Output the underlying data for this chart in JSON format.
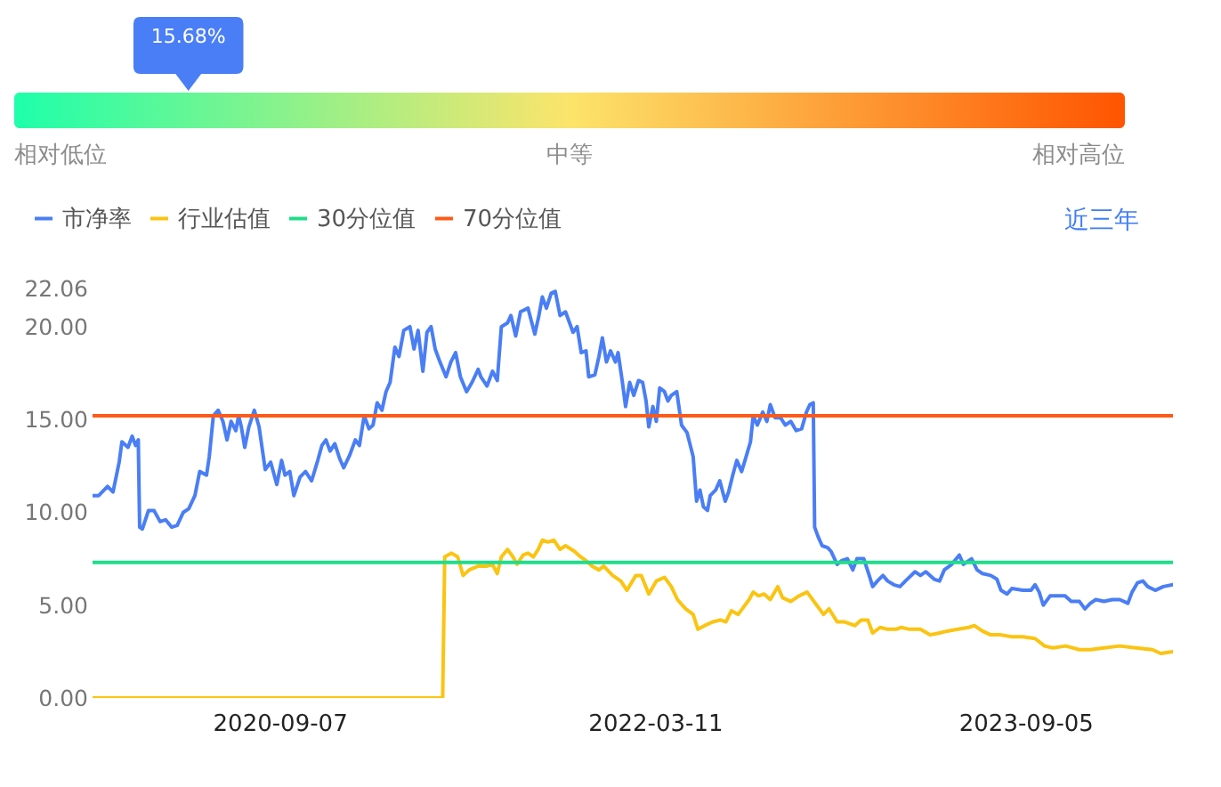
{
  "chart_data": [
    {
      "type": "other",
      "values": [
        15.68
      ],
      "value_labels": [
        "15.68%"
      ],
      "color": "#4a7ef7",
      "annotations": [
        "相对低位",
        "中等",
        "相对高位"
      ]
    },
    {
      "type": "line",
      "legend": "top left",
      "annotations": [
        "近三年"
      ],
      "xlim": [
        "2019-12-08",
        "2024-04-08"
      ],
      "xticks": [
        "2020-09-07",
        "2022-03-11",
        "2023-09-05"
      ],
      "ylim": [
        0,
        22.06
      ],
      "yticks": [
        {
          "value": 0,
          "label": "0.00"
        },
        {
          "value": 5,
          "label": "5.00"
        },
        {
          "value": 10,
          "label": "10.00"
        },
        {
          "value": 15,
          "label": "15.00"
        },
        {
          "value": 20,
          "label": "20.00"
        },
        {
          "value": 22.06,
          "label": "22.06"
        }
      ],
      "series": [
        {
          "name": "市净率",
          "color": "#4a7ef5",
          "x": [
            "2019-12-08",
            "2019-12-17",
            "2019-12-30",
            "2020-01-07",
            "2020-01-16",
            "2020-01-20",
            "2020-01-29",
            "2020-02-04",
            "2020-02-09",
            "2020-02-13",
            "2020-02-15",
            "2020-02-19",
            "2020-02-28",
            "2020-03-07",
            "2020-03-16",
            "2020-03-24",
            "2020-04-02",
            "2020-04-10",
            "2020-04-19",
            "2020-04-27",
            "2020-05-06",
            "2020-05-13",
            "2020-05-23",
            "2020-05-27",
            "2020-06-02",
            "2020-06-09",
            "2020-06-16",
            "2020-06-22",
            "2020-06-28",
            "2020-07-05",
            "2020-07-09",
            "2020-07-13",
            "2020-07-18",
            "2020-07-24",
            "2020-08-01",
            "2020-08-08",
            "2020-08-17",
            "2020-08-25",
            "2020-09-03",
            "2020-09-10",
            "2020-09-15",
            "2020-09-22",
            "2020-09-28",
            "2020-10-07",
            "2020-10-15",
            "2020-10-24",
            "2020-11-02",
            "2020-11-08",
            "2020-11-14",
            "2020-11-20",
            "2020-11-27",
            "2020-12-04",
            "2020-12-10",
            "2020-12-19",
            "2020-12-27",
            "2021-01-02",
            "2021-01-09",
            "2021-01-16",
            "2021-01-22",
            "2021-01-28",
            "2021-02-04",
            "2021-02-10",
            "2021-02-16",
            "2021-02-23",
            "2021-03-01",
            "2021-03-08",
            "2021-03-17",
            "2021-03-23",
            "2021-03-29",
            "2021-04-05",
            "2021-04-11",
            "2021-04-17",
            "2021-04-23",
            "2021-04-30",
            "2021-05-09",
            "2021-05-16",
            "2021-05-23",
            "2021-05-30",
            "2021-06-08",
            "2021-06-16",
            "2021-06-25",
            "2021-06-29",
            "2021-07-08",
            "2021-07-16",
            "2021-07-23",
            "2021-07-29",
            "2021-08-07",
            "2021-08-12",
            "2021-08-19",
            "2021-08-26",
            "2021-09-06",
            "2021-09-11",
            "2021-09-16",
            "2021-09-22",
            "2021-09-27",
            "2021-10-03",
            "2021-10-10",
            "2021-10-16",
            "2021-10-23",
            "2021-10-31",
            "2021-11-11",
            "2021-11-17",
            "2021-11-23",
            "2021-11-30",
            "2021-12-04",
            "2021-12-13",
            "2021-12-19",
            "2021-12-24",
            "2021-12-30",
            "2022-01-05",
            "2022-01-12",
            "2022-01-16",
            "2022-01-22",
            "2022-01-27",
            "2022-02-02",
            "2022-02-08",
            "2022-02-15",
            "2022-02-21",
            "2022-02-26",
            "2022-03-02",
            "2022-03-08",
            "2022-03-13",
            "2022-03-18",
            "2022-03-25",
            "2022-03-30",
            "2022-04-04",
            "2022-04-12",
            "2022-04-19",
            "2022-04-27",
            "2022-05-06",
            "2022-05-11",
            "2022-05-16",
            "2022-05-21",
            "2022-05-27",
            "2022-05-31",
            "2022-06-08",
            "2022-06-14",
            "2022-06-22",
            "2022-06-27",
            "2022-07-03",
            "2022-07-09",
            "2022-07-16",
            "2022-07-21",
            "2022-07-29",
            "2022-08-02",
            "2022-08-08",
            "2022-08-16",
            "2022-08-22",
            "2022-08-27",
            "2022-09-03",
            "2022-09-11",
            "2022-09-18",
            "2022-09-26",
            "2022-10-04",
            "2022-10-12",
            "2022-10-19",
            "2022-10-24",
            "2022-10-29",
            "2022-10-31",
            "2022-11-05",
            "2022-11-11",
            "2022-11-19",
            "2022-11-24",
            "2022-12-03",
            "2022-12-10",
            "2022-12-18",
            "2022-12-26",
            "2023-01-01",
            "2023-01-11",
            "2023-01-19",
            "2023-01-24",
            "2023-01-31",
            "2023-02-08",
            "2023-02-15",
            "2023-02-24",
            "2023-03-05",
            "2023-03-13",
            "2023-03-27",
            "2023-04-04",
            "2023-04-12",
            "2023-04-24",
            "2023-05-02",
            "2023-05-09",
            "2023-05-20",
            "2023-05-31",
            "2023-06-06",
            "2023-06-18",
            "2023-06-26",
            "2023-07-04",
            "2023-07-16",
            "2023-07-25",
            "2023-07-31",
            "2023-08-09",
            "2023-08-16",
            "2023-09-01",
            "2023-09-13",
            "2023-09-19",
            "2023-09-25",
            "2023-10-01",
            "2023-10-11",
            "2023-10-22",
            "2023-11-02",
            "2023-11-11",
            "2023-11-23",
            "2023-12-01",
            "2023-12-09",
            "2023-12-17",
            "2023-12-29",
            "2024-01-10",
            "2024-01-21",
            "2024-02-02",
            "2024-02-08",
            "2024-02-16",
            "2024-02-24",
            "2024-03-02",
            "2024-03-13",
            "2024-03-25",
            "2024-04-08"
          ],
          "values": [
            10.9,
            10.9,
            11.4,
            11.1,
            12.7,
            13.8,
            13.5,
            14.1,
            13.6,
            13.9,
            9.2,
            9.1,
            10.1,
            10.1,
            9.5,
            9.6,
            9.2,
            9.3,
            10.0,
            10.2,
            10.9,
            12.2,
            12.0,
            13.0,
            15.2,
            15.5,
            14.9,
            13.9,
            14.9,
            14.4,
            15.2,
            14.6,
            13.5,
            14.6,
            15.5,
            14.6,
            12.3,
            12.7,
            11.5,
            12.8,
            12.0,
            12.2,
            10.9,
            11.9,
            12.2,
            11.7,
            12.8,
            13.6,
            13.9,
            13.3,
            13.7,
            12.9,
            12.4,
            13.1,
            13.9,
            13.6,
            15.2,
            14.5,
            14.7,
            15.9,
            15.5,
            16.5,
            17.0,
            18.9,
            18.4,
            19.8,
            20.0,
            18.8,
            19.8,
            17.6,
            19.7,
            20.0,
            18.8,
            18.1,
            17.3,
            18.1,
            18.6,
            17.3,
            16.5,
            17.0,
            17.7,
            17.3,
            16.8,
            17.6,
            17.1,
            20.0,
            20.2,
            20.6,
            19.5,
            20.8,
            21.0,
            20.3,
            19.6,
            20.6,
            21.6,
            21.0,
            21.8,
            21.9,
            20.6,
            20.8,
            19.7,
            20.0,
            18.6,
            18.7,
            17.3,
            17.4,
            18.4,
            19.4,
            18.1,
            18.7,
            18.1,
            18.6,
            17.1,
            15.7,
            17.0,
            16.3,
            17.1,
            17.0,
            16.0,
            14.6,
            15.7,
            14.9,
            16.7,
            16.5,
            16.0,
            16.3,
            16.5,
            14.7,
            14.3,
            13.0,
            10.6,
            11.2,
            10.3,
            10.1,
            10.9,
            11.2,
            11.7,
            10.6,
            11.1,
            12.0,
            12.8,
            12.2,
            12.8,
            13.8,
            15.2,
            14.7,
            15.4,
            14.9,
            15.8,
            15.1,
            15.1,
            14.7,
            14.9,
            14.4,
            14.5,
            15.4,
            15.8,
            15.9,
            9.2,
            8.7,
            8.2,
            8.1,
            7.9,
            7.2,
            7.4,
            7.5,
            6.9,
            7.5,
            7.5,
            6.6,
            6.0,
            6.3,
            6.6,
            6.3,
            6.1,
            6.0,
            6.3,
            6.8,
            6.6,
            6.8,
            6.4,
            6.3,
            6.9,
            7.2,
            7.7,
            7.2,
            7.5,
            6.9,
            6.7,
            6.6,
            6.4,
            5.8,
            5.6,
            5.9,
            5.8,
            5.8,
            6.1,
            5.7,
            5.0,
            5.5,
            5.5,
            5.5,
            5.2,
            5.2,
            4.8,
            5.1,
            5.3,
            5.2,
            5.3,
            5.3,
            5.1,
            5.7,
            6.2,
            6.3,
            6.0,
            5.8,
            6.0,
            6.1
          ]
        },
        {
          "name": "行业估值",
          "color": "#fbc412",
          "x": [
            "2019-12-08",
            "2021-05-04",
            "2021-05-07",
            "2021-05-17",
            "2021-05-26",
            "2021-06-03",
            "2021-06-12",
            "2021-06-25",
            "2021-07-08",
            "2021-07-16",
            "2021-07-23",
            "2021-07-29",
            "2021-08-07",
            "2021-08-15",
            "2021-08-21",
            "2021-08-30",
            "2021-09-06",
            "2021-09-14",
            "2021-09-21",
            "2021-09-27",
            "2021-10-05",
            "2021-10-14",
            "2021-10-23",
            "2021-10-31",
            "2021-11-13",
            "2021-11-22",
            "2021-11-30",
            "2021-12-09",
            "2021-12-19",
            "2021-12-26",
            "2022-01-08",
            "2022-01-20",
            "2022-01-29",
            "2022-02-11",
            "2022-02-19",
            "2022-03-02",
            "2022-03-13",
            "2022-03-25",
            "2022-04-04",
            "2022-04-13",
            "2022-04-25",
            "2022-05-06",
            "2022-05-13",
            "2022-05-23",
            "2022-06-04",
            "2022-06-15",
            "2022-06-23",
            "2022-07-01",
            "2022-07-11",
            "2022-07-17",
            "2022-07-27",
            "2022-08-02",
            "2022-08-10",
            "2022-08-18",
            "2022-08-27",
            "2022-09-07",
            "2022-09-14",
            "2022-09-26",
            "2022-10-08",
            "2022-10-20",
            "2022-11-03",
            "2022-11-13",
            "2022-11-21",
            "2022-12-03",
            "2022-12-14",
            "2022-12-29",
            "2023-01-07",
            "2023-01-17",
            "2023-01-24",
            "2023-02-04",
            "2023-02-15",
            "2023-02-27",
            "2023-03-07",
            "2023-03-19",
            "2023-04-04",
            "2023-04-18",
            "2023-05-02",
            "2023-05-13",
            "2023-05-29",
            "2023-06-14",
            "2023-06-22",
            "2023-07-04",
            "2023-07-16",
            "2023-07-31",
            "2023-08-16",
            "2023-09-01",
            "2023-09-19",
            "2023-10-03",
            "2023-10-15",
            "2023-11-03",
            "2023-11-23",
            "2023-12-09",
            "2023-12-29",
            "2024-01-21",
            "2024-02-14",
            "2024-03-09",
            "2024-03-21",
            "2024-04-08"
          ],
          "values": [
            0,
            0,
            7.6,
            7.8,
            7.6,
            6.6,
            6.9,
            7.1,
            7.1,
            7.2,
            6.7,
            7.6,
            8.0,
            7.6,
            7.2,
            7.7,
            7.8,
            7.6,
            8.0,
            8.5,
            8.4,
            8.5,
            8.0,
            8.2,
            7.9,
            7.6,
            7.4,
            7.1,
            6.9,
            7.1,
            6.6,
            6.3,
            5.8,
            6.6,
            6.6,
            5.6,
            6.3,
            6.5,
            6.0,
            5.3,
            4.8,
            4.5,
            3.7,
            3.9,
            4.1,
            4.2,
            4.1,
            4.7,
            4.5,
            4.8,
            5.3,
            5.7,
            5.5,
            5.6,
            5.3,
            6.0,
            5.4,
            5.2,
            5.5,
            5.7,
            5.0,
            4.5,
            4.8,
            4.1,
            4.1,
            3.9,
            4.2,
            4.2,
            3.5,
            3.8,
            3.7,
            3.7,
            3.8,
            3.7,
            3.7,
            3.4,
            3.5,
            3.6,
            3.7,
            3.8,
            3.9,
            3.6,
            3.4,
            3.4,
            3.3,
            3.3,
            3.2,
            2.8,
            2.7,
            2.8,
            2.6,
            2.6,
            2.7,
            2.8,
            2.7,
            2.6,
            2.4,
            2.5
          ]
        },
        {
          "name": "30分位值",
          "color": "#1fdc8b",
          "x": [
            "2019-12-08",
            "2024-04-08"
          ],
          "values": [
            7.3,
            7.3
          ]
        },
        {
          "name": "70分位值",
          "color": "#fd5a18",
          "x": [
            "2019-12-08",
            "2024-04-08"
          ],
          "values": [
            15.2,
            15.2
          ]
        }
      ]
    }
  ]
}
